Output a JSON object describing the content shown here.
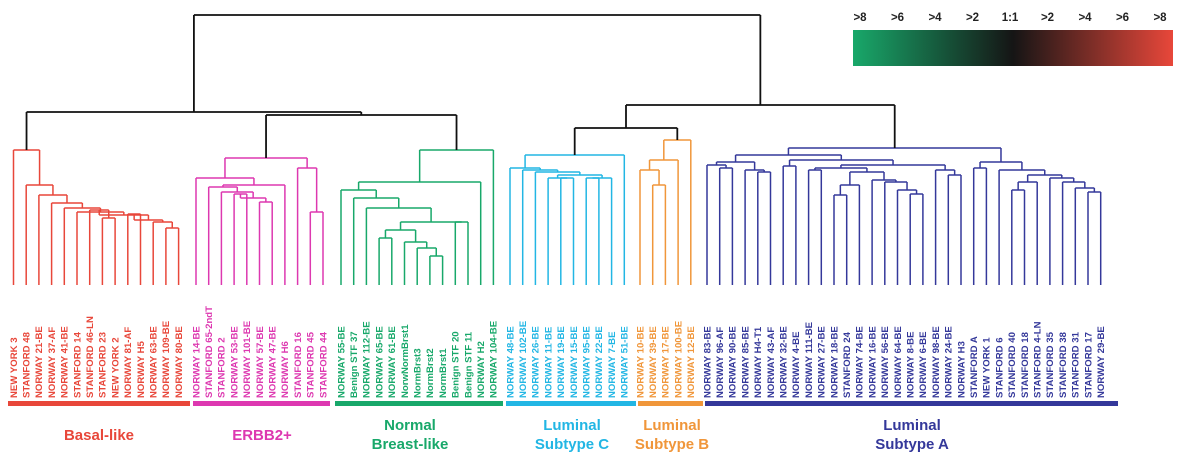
{
  "scale_bar": {
    "labels": [
      ">8",
      ">6",
      ">4",
      ">2",
      "1:1",
      ">2",
      ">4",
      ">6",
      ">8"
    ],
    "low_color": "#18a86a",
    "mid_color": "#151515",
    "high_color": "#e8473a"
  },
  "tree_color": "#111111",
  "groups": [
    {
      "key": "basal",
      "label_lines": [
        "Basal-like"
      ],
      "color": "#e8473a",
      "leaves": [
        "NEW YORK 3",
        "STANFORD 48",
        "NORWAY 21-BE",
        "NORWAY 37-AF",
        "NORWAY 41-BE",
        "STANFORD 14",
        "STANFORD 46-LN",
        "STANFORD 23",
        "NEW YORK 2",
        "NORWAY 81-AF",
        "NORWAY H5",
        "NORWAY 63-BE",
        "NORWAY 109-BE",
        "NORWAY 80-BE"
      ]
    },
    {
      "key": "erbb2",
      "label_lines": [
        "ERBB2+"
      ],
      "color": "#dd38b0",
      "leaves": [
        "NORWAY 14-BE",
        "STANFORD 65-2ndT",
        "STANFORD 2",
        "NORWAY 53-BE",
        "NORWAY 101-BE",
        "NORWAY 57-BE",
        "NORWAY 47-BE",
        "NORWAY H6",
        "STANFORD 16",
        "STANFORD 45",
        "STANFORD 44"
      ]
    },
    {
      "key": "normal",
      "label_lines": [
        "Normal",
        "Breast-like"
      ],
      "color": "#18a86a",
      "leaves": [
        "NORWAY 55-BE",
        "Benign STF 37",
        "NORWAY 112-BE",
        "NORWAY 65-BE",
        "NORWAY 61-BE",
        "NorwNormBrst1",
        "NormBrst3",
        "NormBrst2",
        "NormBrst1",
        "Benign STF 20",
        "Benign STF 11",
        "NORWAY H2",
        "NORWAY 104-BE"
      ]
    },
    {
      "key": "lumC",
      "label_lines": [
        "Luminal",
        "Subtype C"
      ],
      "color": "#22b6e4",
      "leaves": [
        "NORWAY 48-BE",
        "NORWAY 102-BE",
        "NORWAY 26-BE",
        "NORWAY 11-BE",
        "NORWAY 19-BE",
        "NORWAY 15-BE",
        "NORWAY 95-BE",
        "NORWAY 22-BE",
        "NORWAY 7-BE",
        "NORWAY 51-BE"
      ]
    },
    {
      "key": "lumB",
      "label_lines": [
        "Luminal",
        "Subtype B"
      ],
      "color": "#f0963a",
      "leaves": [
        "NORWAY 10-BE",
        "NORWAY 39-BE",
        "NORWAY 17-BE",
        "NORWAY 100-BE",
        "NORWAY 12-BE"
      ]
    },
    {
      "key": "lumA",
      "label_lines": [
        "Luminal",
        "Subtype A"
      ],
      "color": "#34389a",
      "leaves": [
        "NORWAY 83-BE",
        "NORWAY 96-AF",
        "NORWAY 90-BE",
        "NORWAY 85-BE",
        "NORWAY H4-T1",
        "NORWAY 43-AF",
        "NORWAY 32-BE",
        "NORWAY 4-BE",
        "NORWAY 111-BE",
        "NORWAY 27-BE",
        "NORWAY 18-BE",
        "STANFORD 24",
        "NORWAY 74-BE",
        "NORWAY 16-BE",
        "NORWAY 56-BE",
        "NORWAY 64-BE",
        "NORWAY 8-BE",
        "NORWAY 6-BE",
        "NORWAY 98-BE",
        "NORWAY 24-BE",
        "NORWAY H3",
        "STANFORD A",
        "NEW YORK 1",
        "STANFORD 6",
        "STANFORD 40",
        "STANFORD 18",
        "STANFORD 4-LN",
        "STANFORD 35",
        "STANFORD 38",
        "STANFORD 31",
        "STANFORD 17",
        "NORWAY 29-BE"
      ]
    }
  ]
}
